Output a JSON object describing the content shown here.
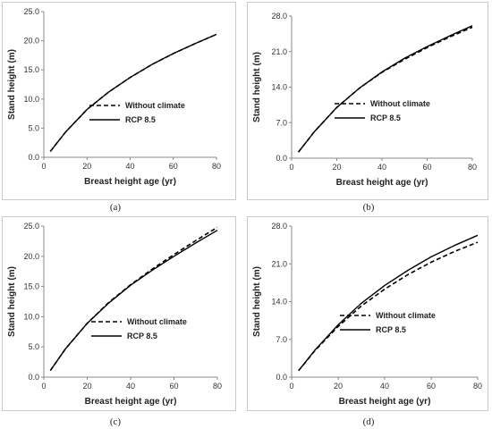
{
  "panels": [
    {
      "caption": "(a)"
    },
    {
      "caption": "(b)"
    },
    {
      "caption": "(c)"
    },
    {
      "caption": "(d)"
    }
  ],
  "chart_data": [
    {
      "type": "line",
      "xlabel": "Breast height age (yr)",
      "ylabel": "Stand height (m)",
      "xlim": [
        0,
        80
      ],
      "ylim": [
        0,
        25
      ],
      "xticks": [
        "0",
        "20",
        "40",
        "60",
        "80"
      ],
      "yticks": [
        "0.0",
        "5.0",
        "10.0",
        "15.0",
        "20.0",
        "25.0"
      ],
      "legend_position": "center-right",
      "series": [
        {
          "name": "Without climate",
          "style": "dashed",
          "x": [
            3,
            10,
            20,
            30,
            40,
            50,
            60,
            70,
            80
          ],
          "y": [
            1.0,
            4.3,
            8.2,
            11.2,
            13.7,
            15.9,
            17.8,
            19.5,
            21.1
          ]
        },
        {
          "name": "RCP 8.5",
          "style": "solid",
          "x": [
            3,
            10,
            20,
            30,
            40,
            50,
            60,
            70,
            80
          ],
          "y": [
            1.0,
            4.3,
            8.2,
            11.2,
            13.7,
            15.9,
            17.8,
            19.5,
            21.1
          ]
        }
      ]
    },
    {
      "type": "line",
      "xlabel": "Breast height age (yr)",
      "ylabel": "Stand height (m)",
      "xlim": [
        0,
        80
      ],
      "ylim": [
        0,
        28
      ],
      "xticks": [
        "0",
        "20",
        "40",
        "60",
        "80"
      ],
      "yticks": [
        "0.0",
        "7.0",
        "14.0",
        "21.0",
        "28.0"
      ],
      "legend_position": "center-right",
      "series": [
        {
          "name": "Without climate",
          "style": "dashed",
          "x": [
            3,
            10,
            20,
            30,
            40,
            50,
            60,
            70,
            80
          ],
          "y": [
            1.2,
            5.2,
            10.0,
            13.8,
            16.9,
            19.5,
            21.8,
            23.9,
            25.8
          ]
        },
        {
          "name": "RCP 8.5",
          "style": "solid",
          "x": [
            3,
            10,
            20,
            30,
            40,
            50,
            60,
            70,
            80
          ],
          "y": [
            1.2,
            5.2,
            10.0,
            13.8,
            17.0,
            19.7,
            22.0,
            24.1,
            26.1
          ]
        }
      ]
    },
    {
      "type": "line",
      "xlabel": "Breast height age (yr)",
      "ylabel": "Stand height (m)",
      "xlim": [
        0,
        80
      ],
      "ylim": [
        0,
        25
      ],
      "xticks": [
        "0",
        "20",
        "40",
        "60",
        "80"
      ],
      "yticks": [
        "0.0",
        "5.0",
        "10.0",
        "15.0",
        "20.0",
        "25.0"
      ],
      "legend_position": "center-right",
      "series": [
        {
          "name": "Without climate",
          "style": "dashed",
          "x": [
            3,
            10,
            20,
            30,
            40,
            50,
            60,
            70,
            80
          ],
          "y": [
            1.1,
            4.7,
            8.9,
            12.4,
            15.3,
            17.9,
            20.3,
            22.6,
            24.8
          ]
        },
        {
          "name": "RCP 8.5",
          "style": "solid",
          "x": [
            3,
            10,
            20,
            30,
            40,
            50,
            60,
            70,
            80
          ],
          "y": [
            1.1,
            4.7,
            8.9,
            12.3,
            15.2,
            17.7,
            20.0,
            22.2,
            24.3
          ]
        }
      ]
    },
    {
      "type": "line",
      "xlabel": "Breast height age (yr)",
      "ylabel": "Stand height (m)",
      "xlim": [
        0,
        80
      ],
      "ylim": [
        0,
        28
      ],
      "xticks": [
        "0",
        "20",
        "40",
        "60",
        "80"
      ],
      "yticks": [
        "0.0",
        "7.0",
        "14.0",
        "21.0",
        "28.0"
      ],
      "legend_position": "center-right",
      "series": [
        {
          "name": "Without climate",
          "style": "dashed",
          "x": [
            3,
            10,
            20,
            30,
            40,
            50,
            60,
            70,
            80
          ],
          "y": [
            1.2,
            4.9,
            9.4,
            13.2,
            16.3,
            19.0,
            21.3,
            23.3,
            25.0
          ]
        },
        {
          "name": "RCP 8.5",
          "style": "solid",
          "x": [
            3,
            10,
            20,
            30,
            40,
            50,
            60,
            70,
            80
          ],
          "y": [
            1.2,
            5.0,
            9.7,
            13.7,
            17.0,
            19.8,
            22.3,
            24.4,
            26.3
          ]
        }
      ]
    }
  ]
}
